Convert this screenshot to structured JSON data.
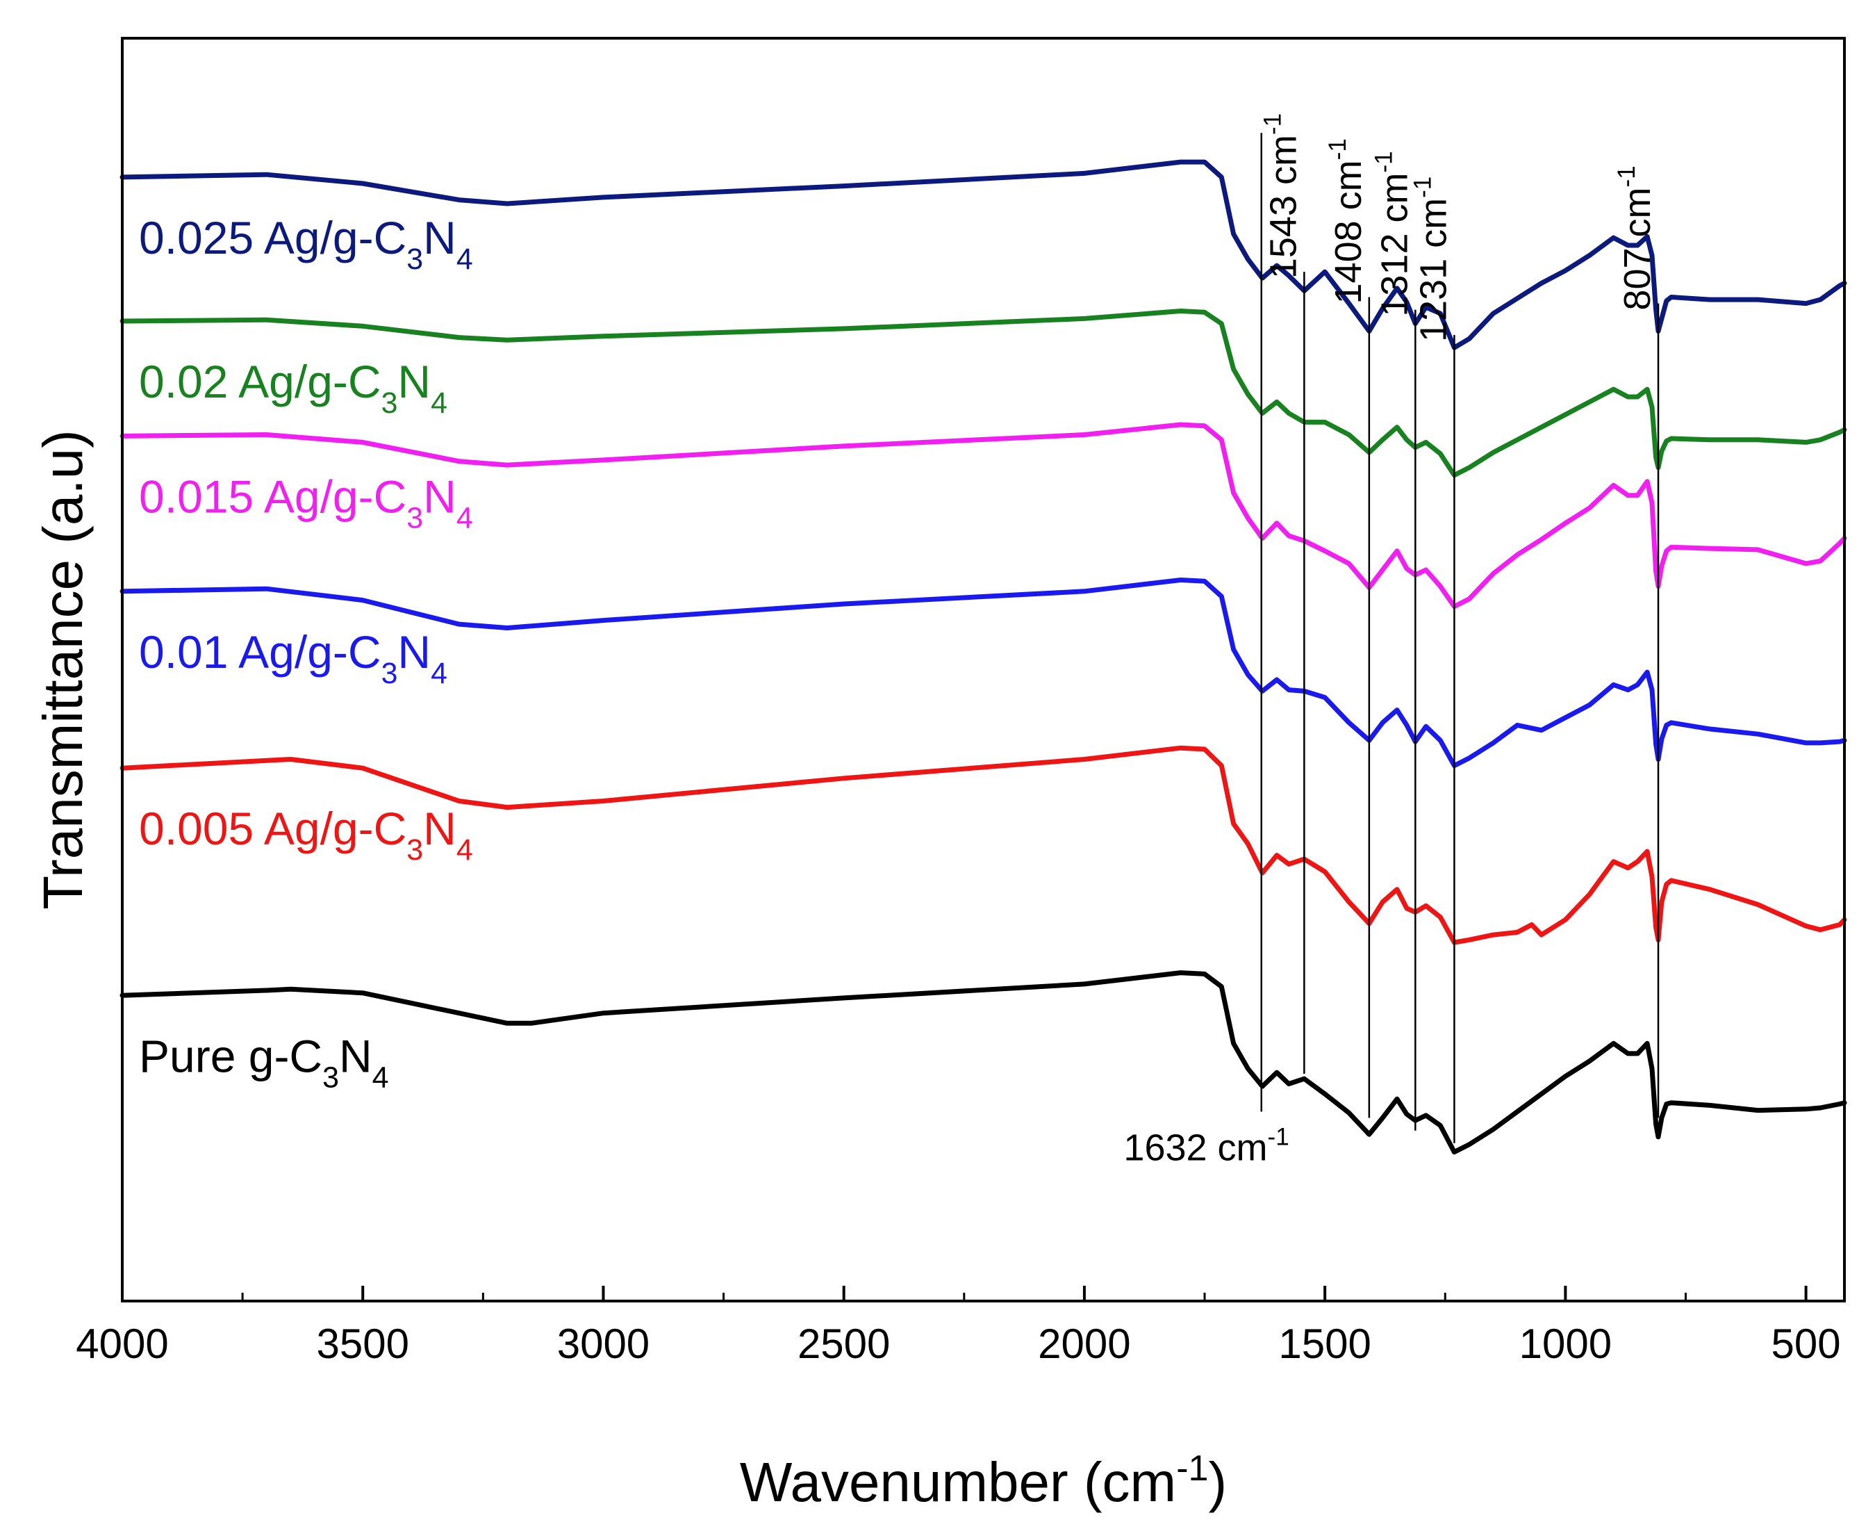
{
  "chart_data": {
    "type": "line",
    "title": "",
    "xlabel": "Wavenumber (cm",
    "xlabel_sup": "-1",
    "xlabel_close": ")",
    "ylabel": "Transmittance (a.u)",
    "xlim": [
      4000,
      420
    ],
    "ylim": [
      0,
      100
    ],
    "x_ticks": [
      4000,
      3500,
      3000,
      2500,
      2000,
      1500,
      1000,
      500
    ],
    "x_tick_labels": [
      "4000",
      "3500",
      "3000",
      "2500",
      "2000",
      "1500",
      "1000",
      "500"
    ],
    "y_ticks_shown": false,
    "peaks": [
      {
        "value": 1632,
        "label": "1632 cm",
        "sup": "-1",
        "y_top": 92.5,
        "y_bottom": 15.0,
        "label_pos": "below"
      },
      {
        "value": 1543,
        "label": "1543 cm",
        "sup": "-1",
        "y_top": 81.5,
        "y_bottom": 18.0,
        "label_pos": "above"
      },
      {
        "value": 1408,
        "label": "1408 cm",
        "sup": "-1",
        "y_top": 79.5,
        "y_bottom": 14.5,
        "label_pos": "above"
      },
      {
        "value": 1312,
        "label": "1312 cm",
        "sup": "-1",
        "y_top": 78.5,
        "y_bottom": 13.5,
        "label_pos": "above"
      },
      {
        "value": 1231,
        "label": "1231 cm",
        "sup": "-1",
        "y_top": 76.5,
        "y_bottom": 12.5,
        "label_pos": "above"
      },
      {
        "value": 807,
        "label": "807 cm",
        "sup": "-1",
        "y_top": 79.0,
        "y_bottom": 14.5,
        "label_pos": "above"
      }
    ],
    "series": [
      {
        "name": "0.025 Ag/g-C3N4",
        "label_main": "0.025 Ag/g-C",
        "label_sub1": "3",
        "label_mid": "N",
        "label_sub2": "4",
        "color": "#0b1a7c",
        "offset": 78,
        "x": [
          4000,
          3700,
          3500,
          3300,
          3200,
          3000,
          2500,
          2000,
          1800,
          1750,
          1715,
          1690,
          1660,
          1630,
          1600,
          1575,
          1543,
          1500,
          1450,
          1408,
          1380,
          1350,
          1330,
          1312,
          1290,
          1260,
          1231,
          1200,
          1150,
          1100,
          1050,
          1000,
          950,
          900,
          870,
          850,
          830,
          820,
          812,
          807,
          800,
          790,
          780,
          700,
          600,
          500,
          470,
          430,
          420
        ],
        "y": [
          11,
          11.2,
          10.5,
          9.2,
          8.9,
          9.4,
          10.3,
          11.3,
          12.2,
          12.2,
          11.0,
          6.5,
          4.5,
          3.0,
          4.0,
          3.2,
          2.0,
          3.5,
          1.0,
          -1.2,
          0.6,
          2.2,
          1.1,
          -0.6,
          0.7,
          0.2,
          -2.5,
          -1.8,
          0.2,
          1.4,
          2.6,
          3.6,
          4.8,
          6.2,
          5.6,
          5.6,
          6.3,
          4.8,
          0.5,
          -1.2,
          -0.2,
          1.2,
          1.5,
          1.3,
          1.3,
          1.0,
          1.3,
          2.4,
          2.6
        ]
      },
      {
        "name": "0.02 Ag/g-C3N4",
        "label_main": "0.02 Ag/g-C",
        "label_sub1": "3",
        "label_mid": "N",
        "label_sub2": "4",
        "color": "#17821f",
        "offset": 67,
        "x": [
          4000,
          3700,
          3500,
          3300,
          3200,
          3000,
          2500,
          2000,
          1800,
          1750,
          1715,
          1690,
          1660,
          1630,
          1600,
          1575,
          1543,
          1500,
          1450,
          1408,
          1380,
          1350,
          1330,
          1312,
          1290,
          1260,
          1231,
          1200,
          1150,
          1100,
          1050,
          1000,
          950,
          900,
          870,
          850,
          830,
          820,
          812,
          807,
          800,
          790,
          780,
          700,
          600,
          500,
          470,
          430,
          420
        ],
        "y": [
          10.6,
          10.7,
          10.2,
          9.3,
          9.1,
          9.4,
          10.0,
          10.8,
          11.4,
          11.3,
          10.4,
          6.8,
          4.8,
          3.3,
          4.2,
          3.3,
          2.6,
          2.6,
          1.6,
          0.2,
          1.2,
          2.2,
          1.2,
          0.6,
          1.0,
          0.1,
          -1.6,
          -1.0,
          0.2,
          1.2,
          2.2,
          3.2,
          4.2,
          5.2,
          4.6,
          4.6,
          5.2,
          3.8,
          -0.2,
          -1.0,
          0.3,
          1.1,
          1.3,
          1.2,
          1.2,
          1.0,
          1.2,
          1.8,
          2.0
        ]
      },
      {
        "name": "0.015 Ag/g-C3N4",
        "label_main": "0.015 Ag/g-C",
        "label_sub1": "3",
        "label_mid": "N",
        "label_sub2": "4",
        "color": "#f020f0",
        "offset": 57,
        "x": [
          4000,
          3700,
          3500,
          3300,
          3200,
          3000,
          2500,
          2000,
          1800,
          1750,
          1715,
          1690,
          1660,
          1630,
          1600,
          1575,
          1543,
          1500,
          1450,
          1408,
          1380,
          1350,
          1330,
          1312,
          1290,
          1260,
          1231,
          1200,
          1150,
          1100,
          1050,
          1000,
          950,
          900,
          870,
          850,
          830,
          820,
          812,
          807,
          800,
          790,
          780,
          700,
          600,
          500,
          470,
          430,
          420
        ],
        "y": [
          11.5,
          11.6,
          11.0,
          9.5,
          9.2,
          9.6,
          10.7,
          11.6,
          12.4,
          12.3,
          11.2,
          7.0,
          5.0,
          3.4,
          4.6,
          3.6,
          3.2,
          2.4,
          1.4,
          -0.5,
          0.9,
          2.4,
          1.0,
          0.5,
          0.9,
          -0.4,
          -2.0,
          -1.4,
          0.6,
          2.1,
          3.3,
          4.6,
          5.8,
          7.6,
          6.8,
          6.8,
          7.9,
          6.2,
          0.8,
          -0.4,
          1.2,
          2.4,
          2.7,
          2.6,
          2.5,
          1.4,
          1.6,
          3.0,
          3.4
        ]
      },
      {
        "name": "0.01 Ag/g-C3N4",
        "label_main": "0.01 Ag/g-C",
        "label_sub1": "3",
        "label_mid": "N",
        "label_sub2": "4",
        "color": "#1a1aee",
        "offset": 44,
        "x": [
          4000,
          3700,
          3500,
          3300,
          3200,
          3000,
          2500,
          2000,
          1800,
          1750,
          1715,
          1690,
          1660,
          1630,
          1600,
          1575,
          1543,
          1500,
          1450,
          1408,
          1380,
          1350,
          1330,
          1312,
          1290,
          1260,
          1231,
          1200,
          1150,
          1100,
          1050,
          1000,
          950,
          900,
          870,
          850,
          830,
          820,
          812,
          807,
          800,
          790,
          780,
          700,
          600,
          500,
          470,
          430,
          420
        ],
        "y": [
          12.2,
          12.4,
          11.5,
          9.6,
          9.3,
          9.9,
          11.2,
          12.2,
          13.1,
          13.0,
          11.8,
          7.6,
          5.6,
          4.3,
          5.2,
          4.4,
          4.3,
          3.8,
          1.8,
          0.4,
          1.8,
          2.8,
          1.6,
          0.3,
          1.5,
          0.4,
          -1.6,
          -1.0,
          0.2,
          1.6,
          1.2,
          2.2,
          3.2,
          4.8,
          4.4,
          4.8,
          5.8,
          4.4,
          0.1,
          -1.1,
          0.5,
          1.6,
          1.8,
          1.3,
          0.9,
          0.2,
          0.2,
          0.3,
          0.4
        ]
      },
      {
        "name": "0.005 Ag/g-C3N4",
        "label_main": "0.005 Ag/g-C",
        "label_sub1": "3",
        "label_mid": "N",
        "label_sub2": "4",
        "color": "#ee1515",
        "offset": 30,
        "x": [
          4000,
          3700,
          3650,
          3500,
          3300,
          3200,
          3000,
          2500,
          2000,
          1800,
          1750,
          1715,
          1690,
          1660,
          1630,
          1600,
          1575,
          1543,
          1500,
          1450,
          1408,
          1380,
          1350,
          1330,
          1312,
          1290,
          1260,
          1231,
          1200,
          1150,
          1100,
          1070,
          1050,
          1000,
          950,
          900,
          870,
          850,
          830,
          820,
          812,
          807,
          800,
          790,
          780,
          700,
          600,
          500,
          470,
          430,
          420
        ],
        "y": [
          12.2,
          12.8,
          12.9,
          12.2,
          9.6,
          9.1,
          9.6,
          11.4,
          12.9,
          13.8,
          13.7,
          12.4,
          7.8,
          6.2,
          3.9,
          5.3,
          4.6,
          5.0,
          4.0,
          1.6,
          -0.1,
          1.6,
          2.6,
          1.1,
          0.8,
          1.3,
          0.4,
          -1.6,
          -1.4,
          -1.0,
          -0.8,
          -0.2,
          -1.0,
          0.2,
          2.2,
          4.8,
          4.3,
          4.8,
          5.6,
          3.6,
          -0.4,
          -1.4,
          1.6,
          3.0,
          3.3,
          2.6,
          1.4,
          -0.3,
          -0.6,
          -0.2,
          0.2
        ]
      },
      {
        "name": "Pure g-C3N4",
        "label_main": "Pure g-C",
        "label_sub1": "3",
        "label_mid": "N",
        "label_sub2": "4",
        "color": "#000000",
        "offset": 14,
        "x": [
          4000,
          3700,
          3650,
          3500,
          3300,
          3200,
          3150,
          3000,
          2500,
          2000,
          1800,
          1750,
          1715,
          1690,
          1660,
          1630,
          1600,
          1575,
          1543,
          1500,
          1450,
          1408,
          1380,
          1350,
          1330,
          1312,
          1290,
          1260,
          1231,
          1200,
          1150,
          1100,
          1050,
          1000,
          950,
          900,
          870,
          850,
          830,
          820,
          812,
          807,
          800,
          790,
          780,
          700,
          600,
          500,
          470,
          430,
          420
        ],
        "y": [
          10.2,
          10.6,
          10.7,
          10.4,
          8.8,
          8.0,
          8.0,
          8.8,
          10.0,
          11.1,
          12.0,
          11.9,
          10.9,
          6.4,
          4.4,
          3.0,
          4.1,
          3.2,
          3.6,
          2.4,
          0.9,
          -0.8,
          0.5,
          2.0,
          0.8,
          0.3,
          0.7,
          -0.1,
          -2.2,
          -1.6,
          -0.4,
          1.0,
          2.4,
          3.8,
          5.0,
          6.4,
          5.6,
          5.6,
          6.4,
          4.4,
          0.0,
          -1.0,
          0.5,
          1.6,
          1.7,
          1.5,
          1.1,
          1.2,
          1.3,
          1.6,
          1.7
        ]
      }
    ]
  }
}
